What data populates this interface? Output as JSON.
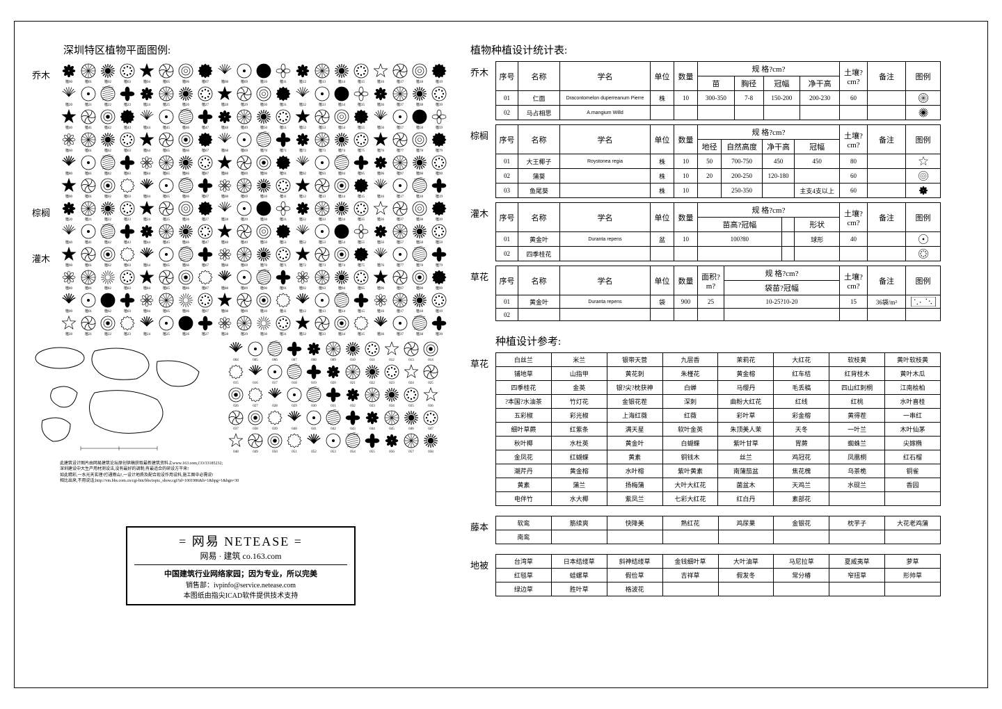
{
  "left": {
    "legend_title": "深圳特区植物平面图例:",
    "categories": [
      {
        "label": "乔木",
        "rows": 6,
        "cols": 20
      },
      {
        "label": "棕榈",
        "rows": 2,
        "cols": 20
      },
      {
        "label": "灌木",
        "rows": 4,
        "cols": 20
      }
    ],
    "extra_grid": {
      "rows": 4,
      "cols": 10,
      "start": 4
    },
    "footnotes": [
      "此建筑设计图片由网易建筑论坛原创供稿获取最新建筑资料上www.163.com,CO/33185232;",
      "深圳建设中大生产用材测设法,没有最好的调制;有最适合的研设方干来!",
      "如此精彩,一水光天玄理!打通雨山!,一设计地质及配合现设作用设料,施工图中必需说!",
      "相比出来,不用说话;http://vm.bbs.com.cn/cgi-bin/bbs/topic_show.cgi?id=1001986&h=1&hpg=1&hgn=30"
    ],
    "title_block": {
      "line1": "= 网易   NETEASE =",
      "line2": "网易 · 建筑    co.163.com",
      "line3": "中国建筑行业网络家园；因为专业，所以完美",
      "line4": "销售部：ivpinfo@service.netease.com",
      "line5": "本图纸由指尖ICAD软件提供技术支持"
    }
  },
  "right": {
    "stats_title": "植物种植设计统计表:",
    "sections": [
      {
        "category": "乔木",
        "header_top": [
          "序号",
          "名称",
          "学名",
          "单位",
          "数量",
          "规          格?cm?",
          "",
          "",
          "",
          "土壤?cm?",
          "备注",
          "图例"
        ],
        "header_sub": [
          "",
          "",
          "",
          "",
          "",
          "苗",
          "胸径",
          "冠幅",
          "净干高",
          "",
          "",
          ""
        ],
        "rows": [
          [
            "01",
            "仁面",
            "Dracontomelon duperreanum Pierre",
            "株",
            "10",
            "300-350",
            "7-8",
            "150-200",
            "200-230",
            "60",
            "",
            "sym-flower"
          ],
          [
            "02",
            "马占相思",
            "A.mangium Willd",
            "",
            "",
            "",
            "",
            "",
            "",
            "",
            "",
            "sym-gear"
          ]
        ]
      },
      {
        "category": "棕榈",
        "header_top": [
          "序号",
          "名称",
          "学名",
          "单位",
          "数量",
          "规          格?cm?",
          "",
          "",
          "",
          "土壤?cm?",
          "备注",
          "图例"
        ],
        "header_sub": [
          "",
          "",
          "",
          "",
          "",
          "地径",
          "自然高度",
          "净干高",
          "冠幅",
          "",
          "",
          ""
        ],
        "rows": [
          [
            "01",
            "大王椰子",
            "Roystonea regia",
            "株",
            "10",
            "50",
            "700-750",
            "450",
            "450",
            "80",
            "",
            "sym-star"
          ],
          [
            "02",
            "蒲葵",
            "",
            "株",
            "10",
            "20",
            "200-250",
            "120-180",
            "",
            "60",
            "",
            "sym-ring"
          ],
          [
            "03",
            "鱼尾葵",
            "",
            "株",
            "10",
            "",
            "250-350",
            "",
            "主支4支以上",
            "60",
            "",
            "sym-burst"
          ]
        ]
      },
      {
        "category": "灌木",
        "header_top": [
          "序号",
          "名称",
          "学名",
          "单位",
          "数量",
          "规          格?cm?",
          "",
          "",
          "土壤?cm?",
          "备注",
          "图例"
        ],
        "header_sub": [
          "",
          "",
          "",
          "",
          "",
          "苗高?冠幅",
          "",
          "形状",
          "",
          "",
          ""
        ],
        "rows": [
          [
            "01",
            "黄金叶",
            "Duranta repens",
            "盆",
            "10",
            "100?80",
            "",
            "球形",
            "40",
            "",
            "sym-circle"
          ],
          [
            "02",
            "四季桂花",
            "",
            "",
            "",
            "",
            "",
            "",
            "",
            "",
            "sym-dots"
          ]
        ]
      },
      {
        "category": "草花",
        "header_top": [
          "序号",
          "名称",
          "学名",
          "单位",
          "数量",
          "面积?m?",
          "规          格?cm?",
          "土壤?cm?",
          "备注",
          "图例"
        ],
        "header_sub": [
          "",
          "",
          "",
          "",
          "",
          "",
          "袋苗?冠幅",
          "",
          "",
          ""
        ],
        "rows": [
          [
            "01",
            "黄金叶",
            "Duranta repens",
            "袋",
            "900",
            "25",
            "10-25?10-20",
            "15",
            "36袋/m²",
            "sym-texture"
          ],
          [
            "02",
            "",
            "",
            "",
            "",
            "",
            "",
            "",
            "",
            ""
          ]
        ]
      }
    ],
    "ref_title": "种植设计参考:",
    "ref_sections": [
      {
        "category": "草花",
        "rows": [
          [
            "白丝兰",
            "米兰",
            "银带天营",
            "九层香",
            "茉莉花",
            "大红花",
            "软枝黄",
            "黄叶软枝黄"
          ],
          [
            "铺地草",
            "山指甲",
            "黄花刺",
            "朱槿花",
            "黄金榕",
            "红车桔",
            "红背桂木",
            "黄叶木瓜"
          ],
          [
            "四季桂花",
            "金英",
            "银?尖?枕获神",
            "白蝉",
            "马缨丹",
            "毛丢稿",
            "四山红刺桐",
            "江南桧柏"
          ],
          [
            "?本国?水油茶",
            "竹灯花",
            "金银花茬",
            "深刺",
            "曲粉大红花",
            "红线",
            "红桃",
            "水叶喜桂"
          ],
          [
            "五彩椒",
            "彩光椒",
            "上海红薇",
            "红薇",
            "彩叶草",
            "彩金榕",
            "黄得茬",
            "一串红"
          ],
          [
            "细叶草蕨",
            "红紫条",
            "满天星",
            "软叶金英",
            "朱顶美人茉",
            "天冬",
            "一叶兰",
            "木叶仙茅"
          ],
          [
            "秋叶椰",
            "水杜英",
            "黄金叶",
            "白蝴蝶",
            "紫叶甘草",
            "胃蕨",
            "蜘蛛兰",
            "尖嫁椭"
          ],
          [
            "金凤花",
            "红蝴蝶",
            "黄素",
            "铜钱木",
            "丝兰",
            "鸡冠花",
            "凤凰桐",
            "红石榴"
          ],
          [
            "潮芹丹",
            "黄金榕",
            "水叶榕",
            "紫叶黄素",
            "南蒲茄盆",
            "焦花槐",
            "乌茶桅",
            "铜雀"
          ],
          [
            "黄素",
            "蒲兰",
            "扬梅蒲",
            "大叶大红花",
            "菌盆木",
            "天鸡兰",
            "水砚兰",
            "香园"
          ],
          [
            "电伴竹",
            "水大椰",
            "紫凤兰",
            "七彩大红花",
            "红白丹",
            "素部花",
            "",
            ""
          ]
        ]
      },
      {
        "category": "藤本",
        "rows": [
          [
            "软鸾",
            "筋续爽",
            "快降美",
            "熟红花",
            "鸡尿果",
            "金银花",
            "枕芋子",
            "大花老鸡蒲"
          ],
          [
            "南鸾",
            "",
            "",
            "",
            "",
            "",
            "",
            ""
          ]
        ]
      },
      {
        "category": "地被",
        "rows": [
          [
            "台湾草",
            "日本结缕草",
            "斜神结缕草",
            "金钱细叶草",
            "大叶油草",
            "马尼拉草",
            "夏威夷草",
            "萝草"
          ],
          [
            "红毯草",
            "蛙螺草",
            "假俭草",
            "吉祥草",
            "假发冬",
            "常分椿",
            "窄扭草",
            "形帅草"
          ],
          [
            "绿边草",
            "胜叶草",
            "格波花",
            "",
            "",
            "",
            "",
            ""
          ]
        ]
      }
    ]
  },
  "colors": {
    "border": "#000000",
    "background": "#ffffff",
    "text": "#000000"
  }
}
